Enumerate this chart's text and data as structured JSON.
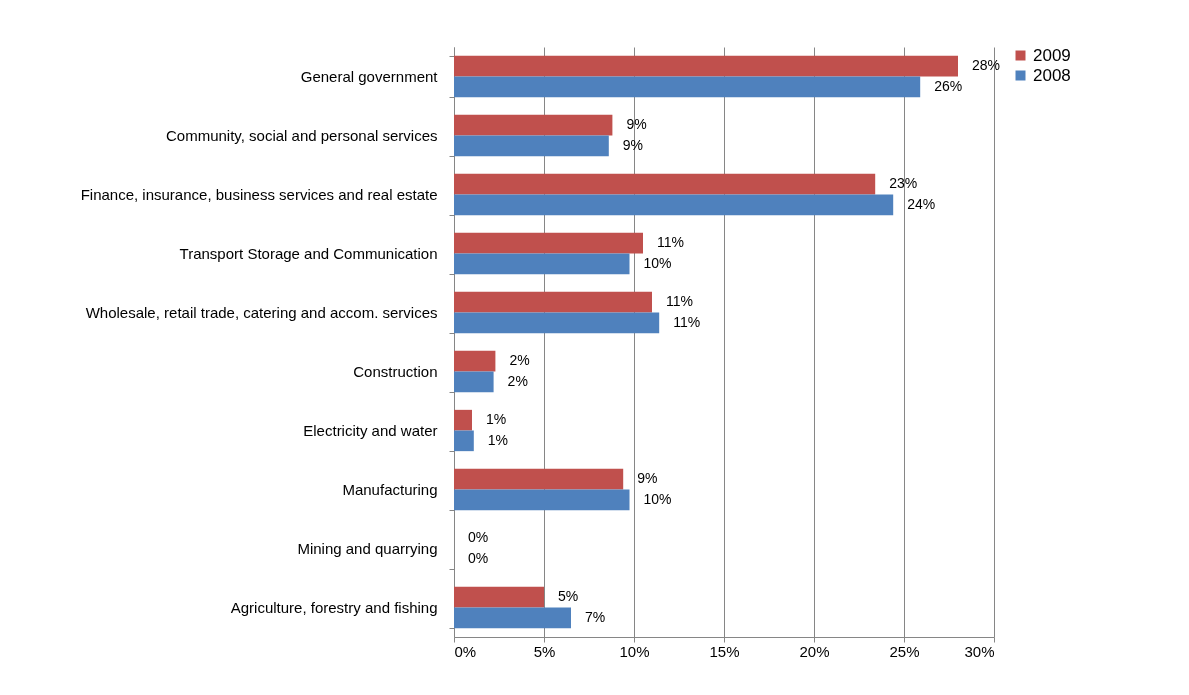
{
  "chart_data": {
    "type": "bar",
    "orientation": "horizontal",
    "categories": [
      "General government",
      "Community, social and personal services",
      "Finance, insurance, business services and real estate",
      "Transport Storage and Communication",
      "Wholesale, retail trade, catering and accom. services",
      "Construction",
      "Electricity and water",
      "Manufacturing",
      "Mining and quarrying",
      "Agriculture, forestry and fishing"
    ],
    "series": [
      {
        "name": "2009",
        "color": "#c0504d",
        "values": [
          28.0,
          8.8,
          23.4,
          10.5,
          11.0,
          2.3,
          1.0,
          9.4,
          0,
          5.0
        ],
        "value_labels": [
          "28%",
          "9%",
          "23%",
          "11%",
          "11%",
          "2%",
          "1%",
          "9%",
          "0%",
          "5%"
        ]
      },
      {
        "name": "2008",
        "color": "#4f81bd",
        "values": [
          25.9,
          8.6,
          24.4,
          9.75,
          11.4,
          2.2,
          1.1,
          9.75,
          0,
          6.5
        ],
        "value_labels": [
          "26%",
          "9%",
          "24%",
          "10%",
          "11%",
          "2%",
          "1%",
          "10%",
          "0%",
          "7%"
        ]
      }
    ],
    "xlim": [
      0,
      30
    ],
    "xticks": [
      {
        "value": 0,
        "label": "0%"
      },
      {
        "value": 5,
        "label": "5%"
      },
      {
        "value": 10,
        "label": "10%"
      },
      {
        "value": 15,
        "label": "15%"
      },
      {
        "value": 20,
        "label": "20%"
      },
      {
        "value": 25,
        "label": "25%"
      },
      {
        "value": 30,
        "label": "30%"
      }
    ],
    "grid": "x",
    "legend": "right"
  }
}
